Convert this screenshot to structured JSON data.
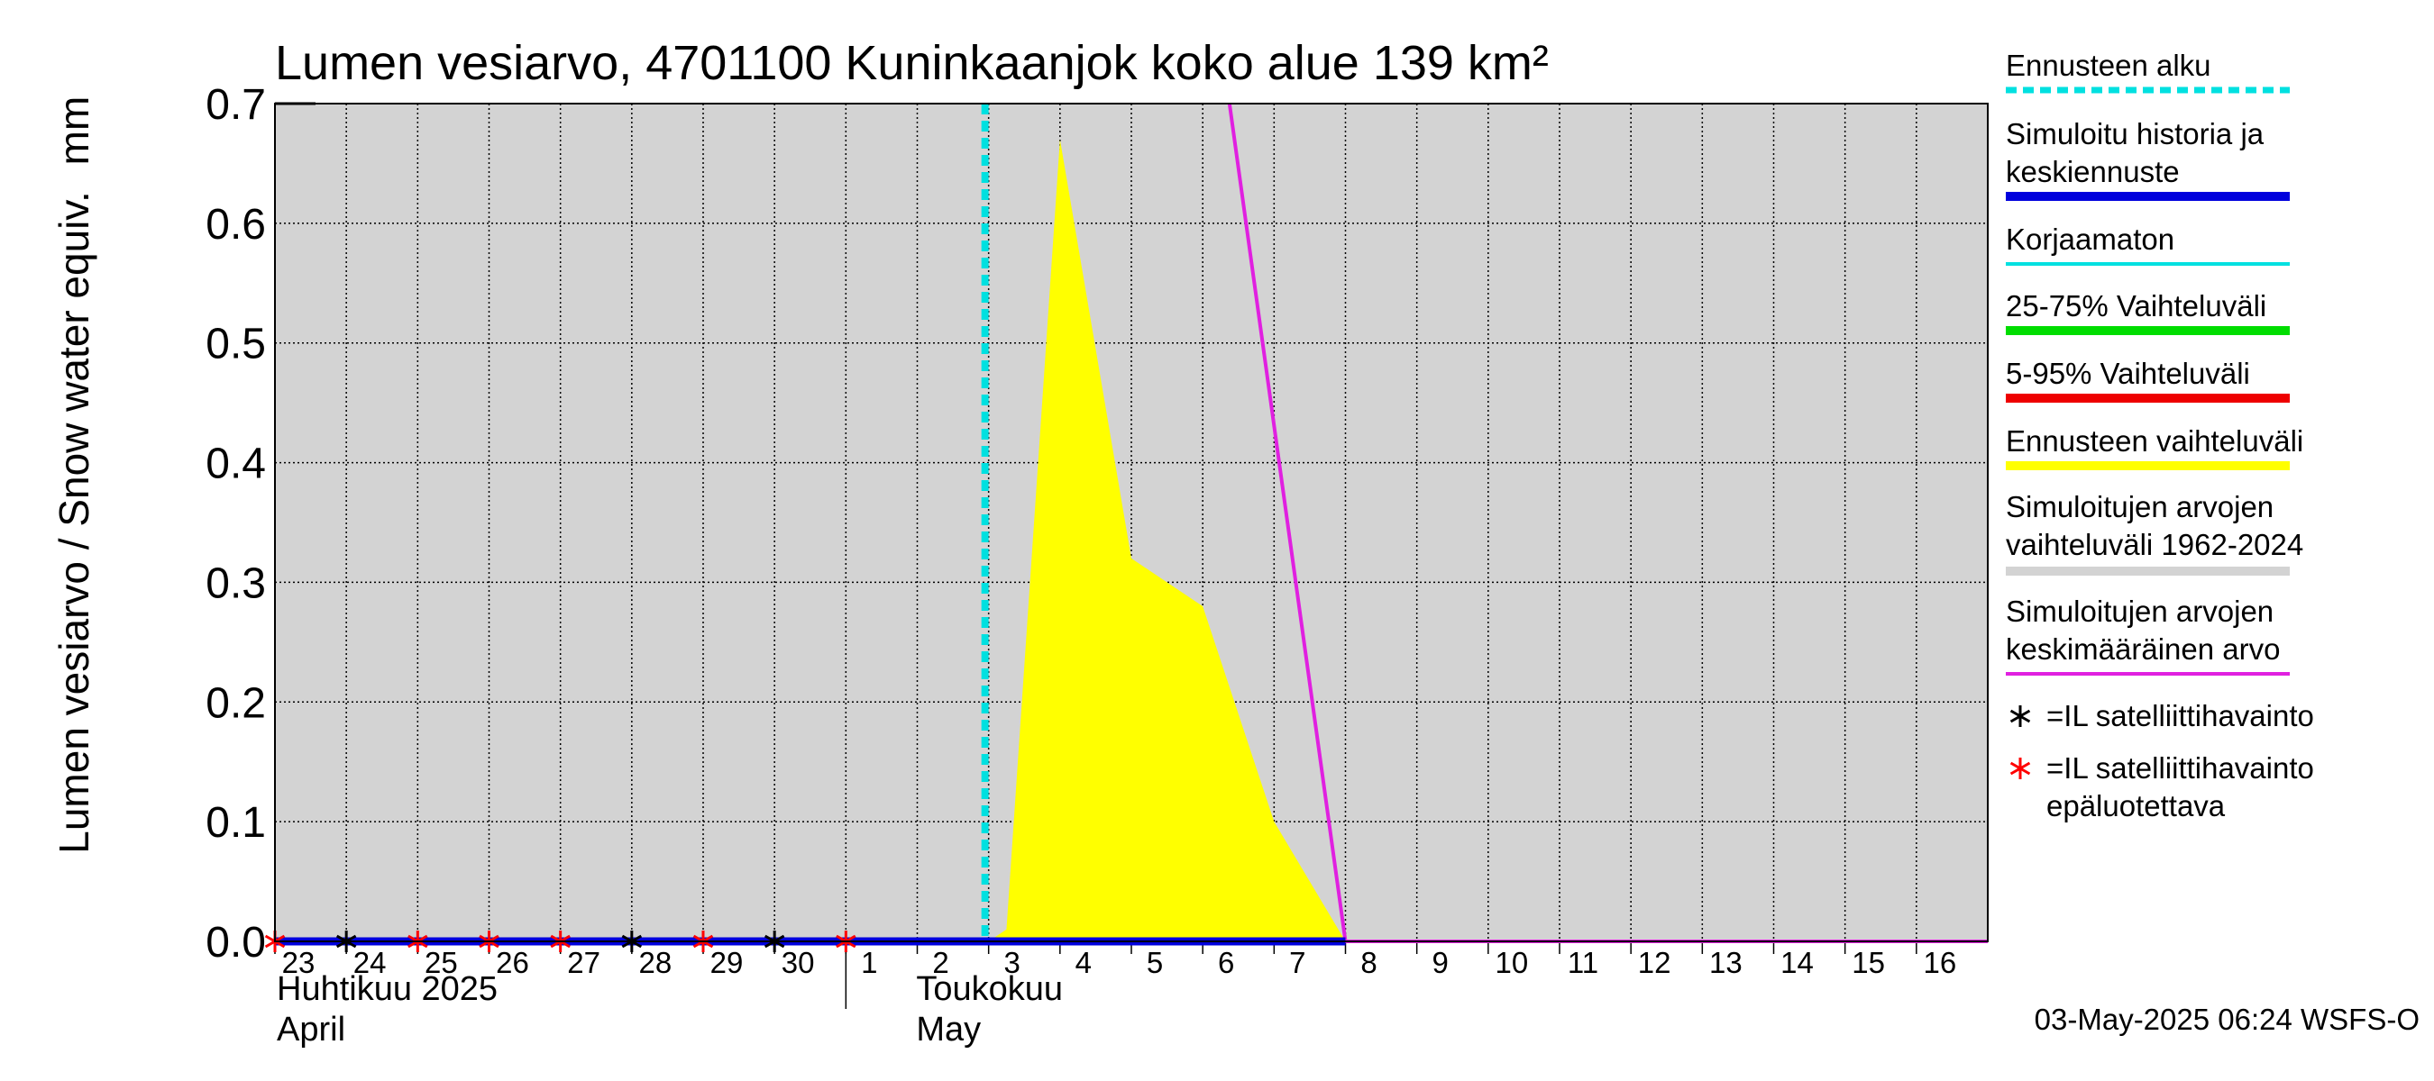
{
  "chart_data": {
    "type": "area",
    "title": "Lumen vesiarvo, 4701100 Kuninkaanjok koko alue 139 km²",
    "ylabel": "Lumen vesiarvo / Snow water equiv.",
    "yunit": "mm",
    "ylim": [
      0.0,
      0.7
    ],
    "yticks": [
      "0.0",
      "0.1",
      "0.2",
      "0.3",
      "0.4",
      "0.5",
      "0.6",
      "0.7"
    ],
    "xlim": [
      "2025-04-23",
      "2025-05-17"
    ],
    "xticks": [
      {
        "date": "2025-04-23",
        "label": "23"
      },
      {
        "date": "2025-04-24",
        "label": "24"
      },
      {
        "date": "2025-04-25",
        "label": "25"
      },
      {
        "date": "2025-04-26",
        "label": "26"
      },
      {
        "date": "2025-04-27",
        "label": "27"
      },
      {
        "date": "2025-04-28",
        "label": "28"
      },
      {
        "date": "2025-04-29",
        "label": "29"
      },
      {
        "date": "2025-04-30",
        "label": "30"
      },
      {
        "date": "2025-05-01",
        "label": "1"
      },
      {
        "date": "2025-05-02",
        "label": "2"
      },
      {
        "date": "2025-05-03",
        "label": "3"
      },
      {
        "date": "2025-05-04",
        "label": "4"
      },
      {
        "date": "2025-05-05",
        "label": "5"
      },
      {
        "date": "2025-05-06",
        "label": "6"
      },
      {
        "date": "2025-05-07",
        "label": "7"
      },
      {
        "date": "2025-05-08",
        "label": "8"
      },
      {
        "date": "2025-05-09",
        "label": "9"
      },
      {
        "date": "2025-05-10",
        "label": "10"
      },
      {
        "date": "2025-05-11",
        "label": "11"
      },
      {
        "date": "2025-05-12",
        "label": "12"
      },
      {
        "date": "2025-05-13",
        "label": "13"
      },
      {
        "date": "2025-05-14",
        "label": "14"
      },
      {
        "date": "2025-05-15",
        "label": "15"
      },
      {
        "date": "2025-05-16",
        "label": "16"
      }
    ],
    "month_labels": [
      {
        "date": "2025-04-23",
        "fi": "Huhtikuu  2025",
        "en": "April"
      },
      {
        "date": "2025-05-01",
        "fi": "Toukokuu",
        "en": "May"
      }
    ],
    "grid": true,
    "legend_position": "right",
    "forecast_start": "2025-05-03",
    "series": [
      {
        "name": "Ennusteen vaihteluväli",
        "kind": "band",
        "color": "#ffff00",
        "points": [
          {
            "x": "2025-05-03",
            "low": 0.0,
            "high": 0.0
          },
          {
            "x": "2025-05-03 06:00",
            "low": 0.0,
            "high": 0.01
          },
          {
            "x": "2025-05-04",
            "low": 0.0,
            "high": 0.67
          },
          {
            "x": "2025-05-05",
            "low": 0.0,
            "high": 0.32
          },
          {
            "x": "2025-05-06",
            "low": 0.0,
            "high": 0.28
          },
          {
            "x": "2025-05-07",
            "low": 0.0,
            "high": 0.1
          },
          {
            "x": "2025-05-08",
            "low": 0.0,
            "high": 0.0
          }
        ]
      },
      {
        "name": "Simuloitujen arvojen keskimääräinen arvo",
        "kind": "line",
        "color": "#e020e0",
        "points": [
          {
            "x": "2025-05-06 09:00",
            "y": 0.7
          },
          {
            "x": "2025-05-08",
            "y": 0.0
          },
          {
            "x": "2025-05-17",
            "y": 0.0
          }
        ]
      },
      {
        "name": "Korjaamaton",
        "kind": "line",
        "color": "#00e0e0",
        "points": [
          {
            "x": "2025-04-23",
            "y": 0.0
          },
          {
            "x": "2025-05-01",
            "y": 0.0
          }
        ]
      },
      {
        "name": "Simuloitu historia ja keskiennuste",
        "kind": "line",
        "color": "#0000dd",
        "points": [
          {
            "x": "2025-04-23",
            "y": 0.0
          },
          {
            "x": "2025-05-08",
            "y": 0.0
          }
        ]
      }
    ],
    "observations": [
      {
        "x": "2025-04-23",
        "y": 0.0,
        "reliable": false
      },
      {
        "x": "2025-04-24",
        "y": 0.0,
        "reliable": true
      },
      {
        "x": "2025-04-25",
        "y": 0.0,
        "reliable": false
      },
      {
        "x": "2025-04-26",
        "y": 0.0,
        "reliable": false
      },
      {
        "x": "2025-04-27",
        "y": 0.0,
        "reliable": false
      },
      {
        "x": "2025-04-28",
        "y": 0.0,
        "reliable": true
      },
      {
        "x": "2025-04-29",
        "y": 0.0,
        "reliable": false
      },
      {
        "x": "2025-04-30",
        "y": 0.0,
        "reliable": true
      },
      {
        "x": "2025-05-01",
        "y": 0.0,
        "reliable": false
      }
    ],
    "legend": [
      {
        "label": "Ennusteen alku",
        "color": "#00e0e0",
        "style": "dashed"
      },
      {
        "label": "Simuloitu historia ja\nkeskiennuste",
        "color": "#0000dd",
        "style": "line"
      },
      {
        "label": "Korjaamaton",
        "color": "#00e0e0",
        "style": "line"
      },
      {
        "label": "25-75% Vaihteluväli",
        "color": "#00dd00",
        "style": "line"
      },
      {
        "label": "5-95% Vaihteluväli",
        "color": "#ee0000",
        "style": "line"
      },
      {
        "label": "Ennusteen vaihteluväli",
        "color": "#ffff00",
        "style": "line"
      },
      {
        "label": "Simuloitujen arvojen\nvaihteluväli 1962-2024",
        "color": "#d3d3d3",
        "style": "line"
      },
      {
        "label": "Simuloitujen arvojen\nkeskimääräinen arvo",
        "color": "#e020e0",
        "style": "line"
      },
      {
        "label": "=IL satelliittihavainto",
        "color": "#000000",
        "style": "marker"
      },
      {
        "label": "=IL satelliittihavainto\nepäluotettava",
        "color": "#ff0000",
        "style": "marker"
      }
    ],
    "footer": "03-May-2025 06:24 WSFS-O"
  },
  "colors": {
    "plot_background": "#d3d3d3",
    "grid": "#000000"
  }
}
